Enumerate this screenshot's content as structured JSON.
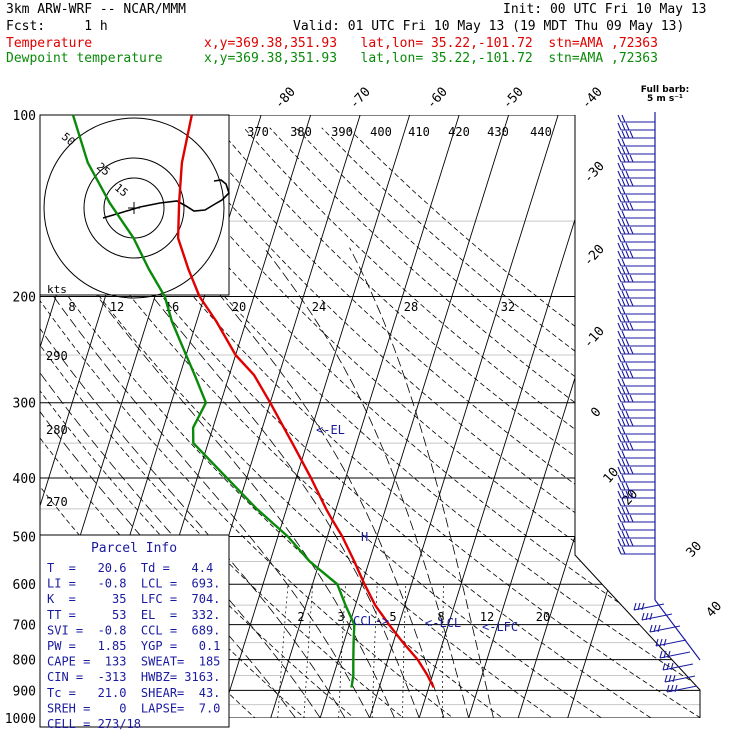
{
  "header": {
    "model_line": "3km ARW-WRF -- NCAR/MMM",
    "init_line": "Init: 00 UTC Fri 10 May 13",
    "fcst_line": "Fcst:     1 h",
    "valid_line": "Valid: 01 UTC Fri 10 May 13 (19 MDT Thu 09 May 13)",
    "temp_label": "Temperature",
    "temp_meta": "x,y=369.38,351.93   lat,lon= 35.22,-101.72  stn=AMA ,72363",
    "dew_label": "Dewpoint temperature",
    "dew_meta": "x,y=369.38,351.93   lat,lon= 35.22,-101.72  stn=AMA ,72363"
  },
  "barb_label": {
    "line1": "Full barb:",
    "line2": "5 m s⁻¹"
  },
  "colors": {
    "temperature": "#e00000",
    "dewpoint": "#0a8a0a",
    "barbs": "#1a1aa0",
    "annot": "#1a1aa0"
  },
  "icons": [
    "hodograph-origin-cross",
    "wind-barb"
  ],
  "chart_data": {
    "type": "line",
    "subtype": "skew-T log-p sounding",
    "y_axis": {
      "label": "pressure (hPa)",
      "scale": "log",
      "range": [
        1000,
        100
      ],
      "ticks": [
        "100",
        "200",
        "300",
        "400",
        "500",
        "600",
        "700",
        "800",
        "900",
        "1000"
      ]
    },
    "top_isotherm_labels": [
      "-80",
      "-70",
      "-60",
      "-50",
      "-40"
    ],
    "right_isotherm_labels": [
      "-30",
      "-20",
      "-10",
      "0",
      "10",
      "20",
      "30",
      "40"
    ],
    "theta_e_labels": [
      "370",
      "380",
      "390",
      "400",
      "410",
      "420",
      "430",
      "440"
    ],
    "left_theta_labels": [
      "290",
      "280",
      "270"
    ],
    "mixing_ratio_labels": [
      "2",
      "3",
      "5",
      "8",
      "12",
      "20"
    ],
    "series": [
      {
        "name": "Temperature",
        "points": [
          [
            890,
            21
          ],
          [
            850,
            19
          ],
          [
            800,
            16
          ],
          [
            750,
            12
          ],
          [
            700,
            8
          ],
          [
            650,
            4
          ],
          [
            600,
            0.5
          ],
          [
            550,
            -3
          ],
          [
            500,
            -7
          ],
          [
            470,
            -10
          ],
          [
            450,
            -12
          ],
          [
            400,
            -17
          ],
          [
            350,
            -23
          ],
          [
            300,
            -30
          ],
          [
            270,
            -35
          ],
          [
            250,
            -40
          ],
          [
            220,
            -46
          ],
          [
            200,
            -51
          ],
          [
            180,
            -55
          ],
          [
            160,
            -59
          ],
          [
            140,
            -61
          ],
          [
            120,
            -63
          ],
          [
            100,
            -64
          ]
        ]
      },
      {
        "name": "Dewpoint temperature",
        "points": [
          [
            890,
            4.4
          ],
          [
            850,
            4
          ],
          [
            800,
            3
          ],
          [
            750,
            2
          ],
          [
            700,
            1
          ],
          [
            650,
            -2
          ],
          [
            600,
            -5
          ],
          [
            550,
            -12
          ],
          [
            500,
            -18
          ],
          [
            450,
            -26
          ],
          [
            400,
            -34
          ],
          [
            350,
            -43
          ],
          [
            330,
            -44
          ],
          [
            300,
            -43
          ],
          [
            270,
            -47
          ],
          [
            250,
            -50
          ],
          [
            220,
            -55
          ],
          [
            200,
            -58
          ],
          [
            180,
            -63
          ],
          [
            160,
            -68
          ],
          [
            140,
            -75
          ],
          [
            120,
            -82
          ],
          [
            100,
            -88
          ]
        ]
      }
    ],
    "levels": {
      "LCL": "<-LCL",
      "CCL": "CCL->",
      "LFC": "<-LFC",
      "EL": "<-EL",
      "tick": "H"
    },
    "hodograph": {
      "units": "kts",
      "ring_labels": [
        "50",
        "25",
        "15"
      ],
      "scale_labels": [
        "8",
        "12",
        "16",
        "20",
        "24",
        "28",
        "32"
      ]
    },
    "parcel_info": {
      "title": "Parcel Info",
      "rows": [
        "T  =   20.6  Td =   4.4",
        "LI =   -0.8  LCL =  693.",
        "K  =     35  LFC =  704.",
        "TT =     53  EL  =  332.",
        "SVI =  -0.8  CCL =  689.",
        "PW =   1.85  YGP =   0.1",
        "CAPE =  133  SWEAT=  185",
        "CIN =  -313  HWBZ= 3163.",
        "Tc =   21.0  SHEAR=  43.",
        "SREH =    0  LAPSE=  7.0",
        "CELL = 273/18"
      ]
    },
    "grid": true
  }
}
